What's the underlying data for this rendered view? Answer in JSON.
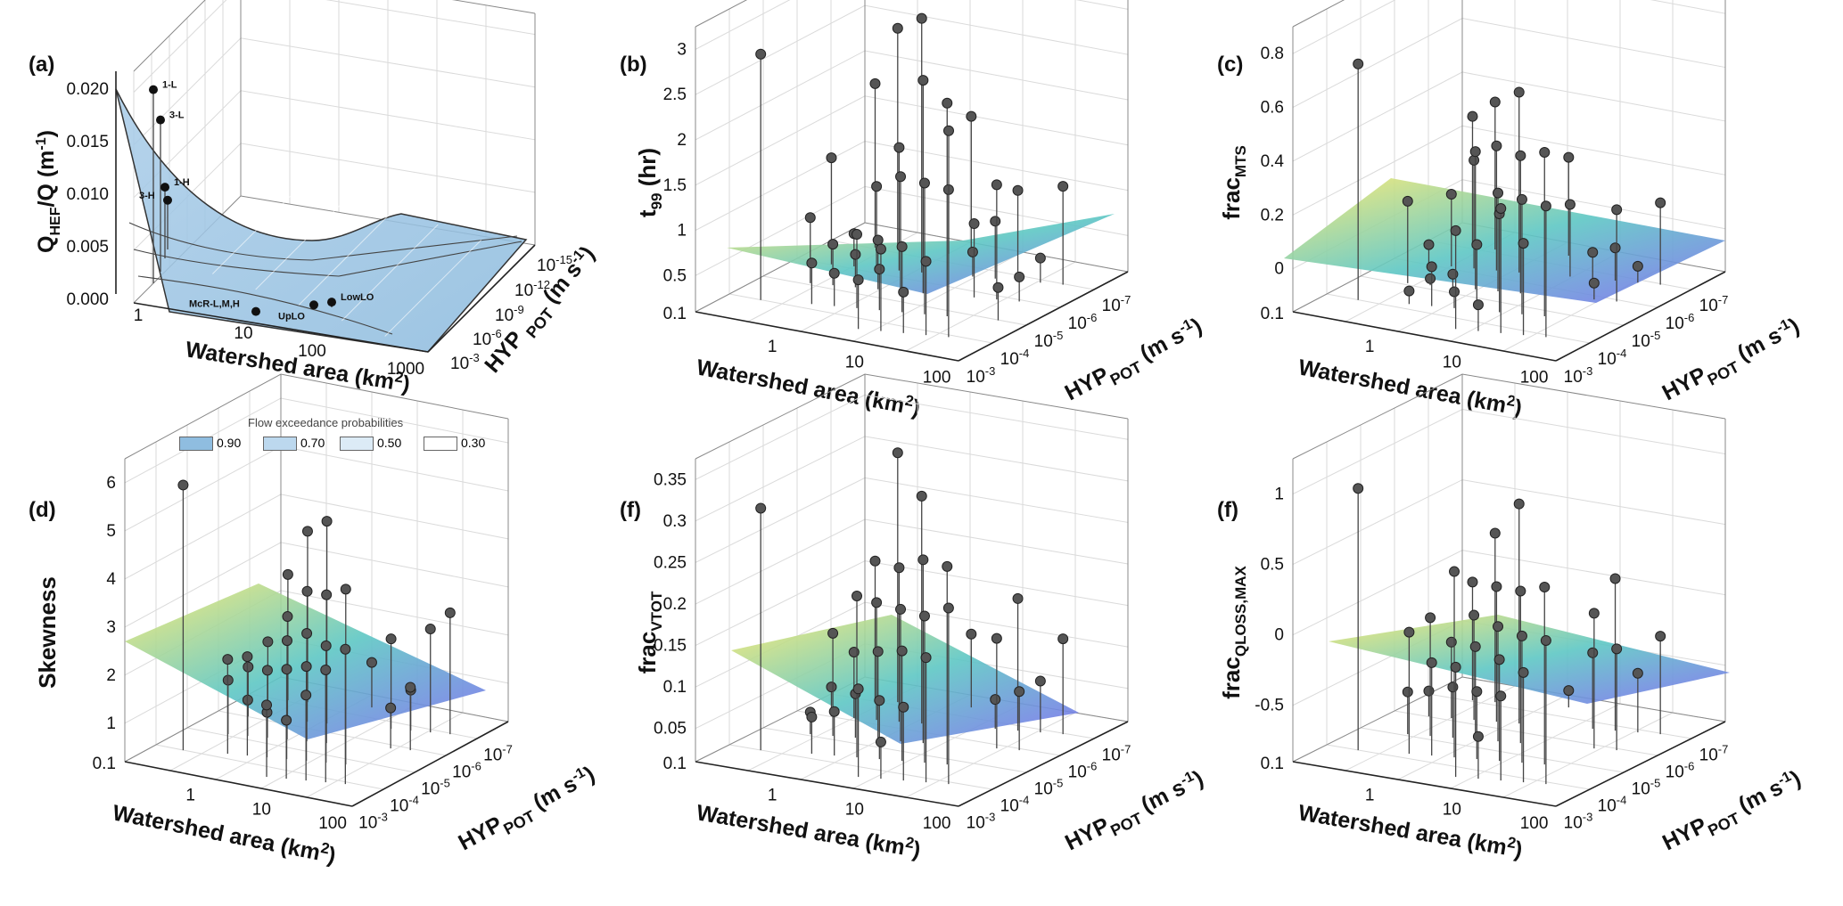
{
  "legend": {
    "title": "Flow exceedance probabilities",
    "items": [
      {
        "label": "0.90",
        "color": "#8fbde0"
      },
      {
        "label": "0.70",
        "color": "#bcd8ee"
      },
      {
        "label": "0.50",
        "color": "#dcebf6"
      },
      {
        "label": "0.30",
        "color": "#ffffff"
      }
    ]
  },
  "colors": {
    "surface_low": "#7c6cf0",
    "surface_mid": "#5ec7c4",
    "surface_high": "#f9e96a",
    "points": "#555555"
  },
  "chart_data": [
    {
      "id": "a",
      "panel_label": "(a)",
      "type": "surface",
      "zlabel": "Q_HEF/Q (m^-1)",
      "xlabel": "Watershed area (km2)",
      "ylabel": "HYP_POT (m s^-1)",
      "zticks": [
        "0.020",
        "0.015",
        "0.010",
        "0.005",
        "0.000"
      ],
      "xticks": [
        "1",
        "10",
        "100",
        "1000"
      ],
      "yticks": [
        "10-3",
        "10-6",
        "10-9",
        "10-12",
        "10-15"
      ],
      "zlim": [
        0,
        0.02
      ],
      "points": [
        {
          "label": "1-L",
          "z": 0.0185
        },
        {
          "label": "3-L",
          "z": 0.0145
        },
        {
          "label": "1-H",
          "z": 0.0068
        },
        {
          "label": "3-H",
          "z": 0.0047
        },
        {
          "label": "McR-L,M,H",
          "z": 0.0002
        },
        {
          "label": "UpLO",
          "z": 0.0004
        },
        {
          "label": "LowLO",
          "z": 0.0005
        }
      ]
    },
    {
      "id": "b",
      "panel_label": "(b)",
      "type": "scatter3d_with_plane",
      "zlabel": "t99 (hr)",
      "xlabel": "Watershed area (km2)",
      "ylabel": "HYP_POT (m s-1)",
      "zticks": [
        "3",
        "2.5",
        "2",
        "1.5",
        "1",
        "0.5"
      ],
      "zbottom": "0.1",
      "xticks": [
        "1",
        "10",
        "100"
      ],
      "yticks": [
        "10-3",
        "10-4",
        "10-5",
        "10-6",
        "10-7"
      ],
      "zlim": [
        0,
        3.2
      ],
      "values": [
        3.0,
        3.1,
        2.6,
        2.7,
        2.6,
        1.8,
        1.5,
        1.6,
        2.0,
        1.4,
        0.9,
        1.0,
        0.8,
        1.2,
        0.6,
        0.5,
        0.4,
        0.5,
        0.3,
        0.4,
        1.0,
        1.3,
        0.9,
        1.1,
        0.5,
        0.6,
        0.3,
        0.4,
        0.7,
        0.8,
        1.7,
        1.4,
        0.5,
        0.3,
        0.4,
        1.5,
        0.9
      ]
    },
    {
      "id": "c",
      "panel_label": "(c)",
      "type": "scatter3d_with_plane",
      "zlabel": "fracMTS",
      "xlabel": "Watershed area (km2)",
      "ylabel": "HYP_POT (m s-1)",
      "zticks": [
        "0.8",
        "0.6",
        "0.4",
        "0.2",
        "0"
      ],
      "zbottom": "0.1",
      "xticks": [
        "1",
        "10",
        "100"
      ],
      "yticks": [
        "10-3",
        "10-4",
        "10-5",
        "10-6",
        "10-7"
      ],
      "zlim": [
        0,
        0.8
      ],
      "values": [
        0.72,
        0.55,
        0.5,
        0.45,
        0.42,
        0.4,
        0.38,
        0.35,
        0.4,
        0.3,
        0.28,
        0.33,
        0.3,
        0.25,
        0.42,
        0.38,
        0.22,
        0.2,
        0.05,
        0.04,
        0.08,
        0.06,
        0.05,
        0.1,
        0.02,
        0.3,
        0.28,
        0.12,
        0.08,
        0.25,
        0.3,
        0.05,
        0.04,
        0.22
      ]
    },
    {
      "id": "d",
      "panel_label": "(d)",
      "type": "scatter3d_with_plane",
      "zlabel": "Skewness",
      "xlabel": "Watershed area (km2)",
      "ylabel": "HYP_POT (m s-1)",
      "zticks": [
        "6",
        "5",
        "4",
        "3",
        "2",
        "1"
      ],
      "zbottom": "0.1",
      "xticks": [
        "1",
        "10",
        "100"
      ],
      "yticks": [
        "10-3",
        "10-4",
        "10-5",
        "10-6",
        "10-7"
      ],
      "zlim": [
        0,
        6.2
      ],
      "values": [
        5.9,
        4.5,
        3.9,
        3.8,
        3.3,
        3.0,
        2.9,
        2.6,
        2.8,
        2.4,
        2.5,
        2.3,
        2.1,
        2.7,
        2.2,
        1.9,
        1.7,
        2.0,
        2.3,
        1.5,
        1.3,
        1.1,
        1.0,
        0.9,
        0.8,
        1.6,
        1.4,
        2.2,
        2.0,
        1.2,
        1.0,
        0.9,
        2.1
      ]
    },
    {
      "id": "e",
      "panel_label": "(f)",
      "type": "scatter3d_with_plane",
      "zlabel": "fracVTOT",
      "xlabel": "Watershed area (km2)",
      "ylabel": "HYP_POT (m s-1)",
      "zticks": [
        "0.35",
        "0.3",
        "0.25",
        "0.2",
        "0.15",
        "0.1",
        "0.05"
      ],
      "zbottom": "0.1",
      "xticks": [
        "1",
        "10",
        "100"
      ],
      "yticks": [
        "10-3",
        "10-4",
        "10-5",
        "10-6",
        "10-7"
      ],
      "zlim": [
        0,
        0.38
      ],
      "values": [
        0.33,
        0.31,
        0.27,
        0.34,
        0.25,
        0.24,
        0.21,
        0.2,
        0.19,
        0.18,
        0.17,
        0.16,
        0.15,
        0.13,
        0.12,
        0.1,
        0.09,
        0.08,
        0.07,
        0.06,
        0.05,
        0.04,
        0.22,
        0.18,
        0.14,
        0.12,
        0.08,
        0.06,
        0.04,
        0.03,
        0.1,
        0.15,
        0.05
      ]
    },
    {
      "id": "f",
      "panel_label": "(f)",
      "type": "scatter3d_with_plane",
      "zlabel": "fracQLOSS,MAX",
      "xlabel": "Watershed area (km2)",
      "ylabel": "HYP_POT (m s-1)",
      "zticks": [
        "1",
        "0.5",
        "0",
        "-0.5"
      ],
      "zbottom": "0.1",
      "xticks": [
        "1",
        "10",
        "100"
      ],
      "yticks": [
        "10-3",
        "10-4",
        "10-5",
        "10-6",
        "10-7"
      ],
      "zlim": [
        -0.6,
        1.05
      ],
      "values": [
        0.95,
        0.7,
        0.45,
        0.4,
        0.3,
        0.25,
        0.2,
        0.15,
        0.1,
        0.08,
        0.05,
        0.02,
        0.0,
        -0.02,
        -0.05,
        -0.1,
        -0.15,
        -0.2,
        -0.25,
        -0.3,
        -0.35,
        -0.45,
        0.5,
        0.3,
        0.1,
        0.05,
        0.0,
        -0.05,
        -0.15,
        -0.35,
        -0.5,
        0.2,
        0.12
      ]
    }
  ]
}
